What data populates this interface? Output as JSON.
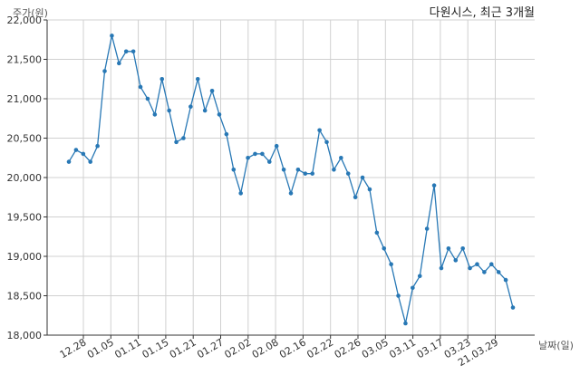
{
  "chart_data": {
    "type": "line",
    "title": "다원시스, 최근 3개월",
    "ylabel": "주가(원)",
    "xlabel": "날짜(일)",
    "ylim": [
      18000,
      22000
    ],
    "y_ticks": [
      "18,000",
      "18,500",
      "19,000",
      "19,500",
      "20,000",
      "20,500",
      "21,000",
      "21,500",
      "22,000"
    ],
    "x_ticks": [
      "12.28",
      "01.05",
      "01.11",
      "01.15",
      "01.21",
      "01.27",
      "02.02",
      "02.08",
      "02.16",
      "02.22",
      "02.26",
      "03.05",
      "03.11",
      "03.17",
      "03.23",
      "21.03.29"
    ],
    "grid": true,
    "line_color": "#2878b5",
    "series": [
      {
        "values": [
          20200,
          20350,
          20300,
          20200,
          20400,
          21350,
          21800,
          21450,
          21600,
          21600,
          21150,
          21000,
          20800,
          21250,
          20850,
          20450,
          20500,
          20900,
          21250,
          20850,
          21100,
          20800,
          20550,
          20100,
          19800,
          20250,
          20300,
          20300,
          20200,
          20400,
          20100,
          19800,
          20100,
          20050,
          20050,
          20600,
          20450,
          20100,
          20250,
          20050,
          19750,
          20000,
          19850,
          19300,
          19100,
          18900,
          18500,
          18150,
          18600,
          18750,
          19350,
          19900,
          18850,
          19100,
          18950,
          19100,
          18850,
          18900,
          18800,
          18900,
          18800,
          18700,
          18350
        ]
      }
    ]
  }
}
